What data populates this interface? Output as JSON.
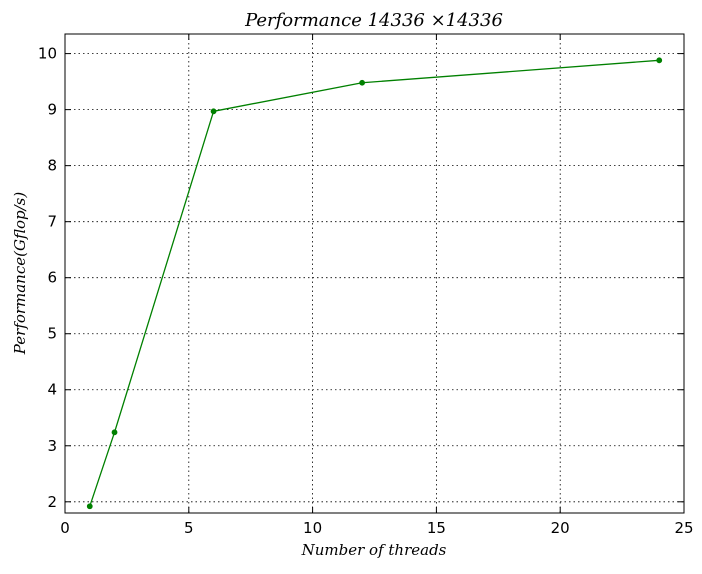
{
  "chart_data": {
    "type": "line",
    "title": "Performance 14336 ×14336",
    "xlabel": "Number of threads",
    "ylabel": "Performance(Gflop/s)",
    "xlim": [
      0,
      25
    ],
    "ylim": [
      1.8,
      10.35
    ],
    "xticks": [
      0,
      5,
      10,
      15,
      20,
      25
    ],
    "yticks": [
      2,
      3,
      4,
      5,
      6,
      7,
      8,
      9,
      10
    ],
    "grid": true,
    "series": [
      {
        "color": "#008000",
        "marker": "point",
        "x": [
          1,
          2,
          6,
          12,
          24
        ],
        "y": [
          1.92,
          3.24,
          8.97,
          9.48,
          9.88
        ]
      }
    ]
  }
}
